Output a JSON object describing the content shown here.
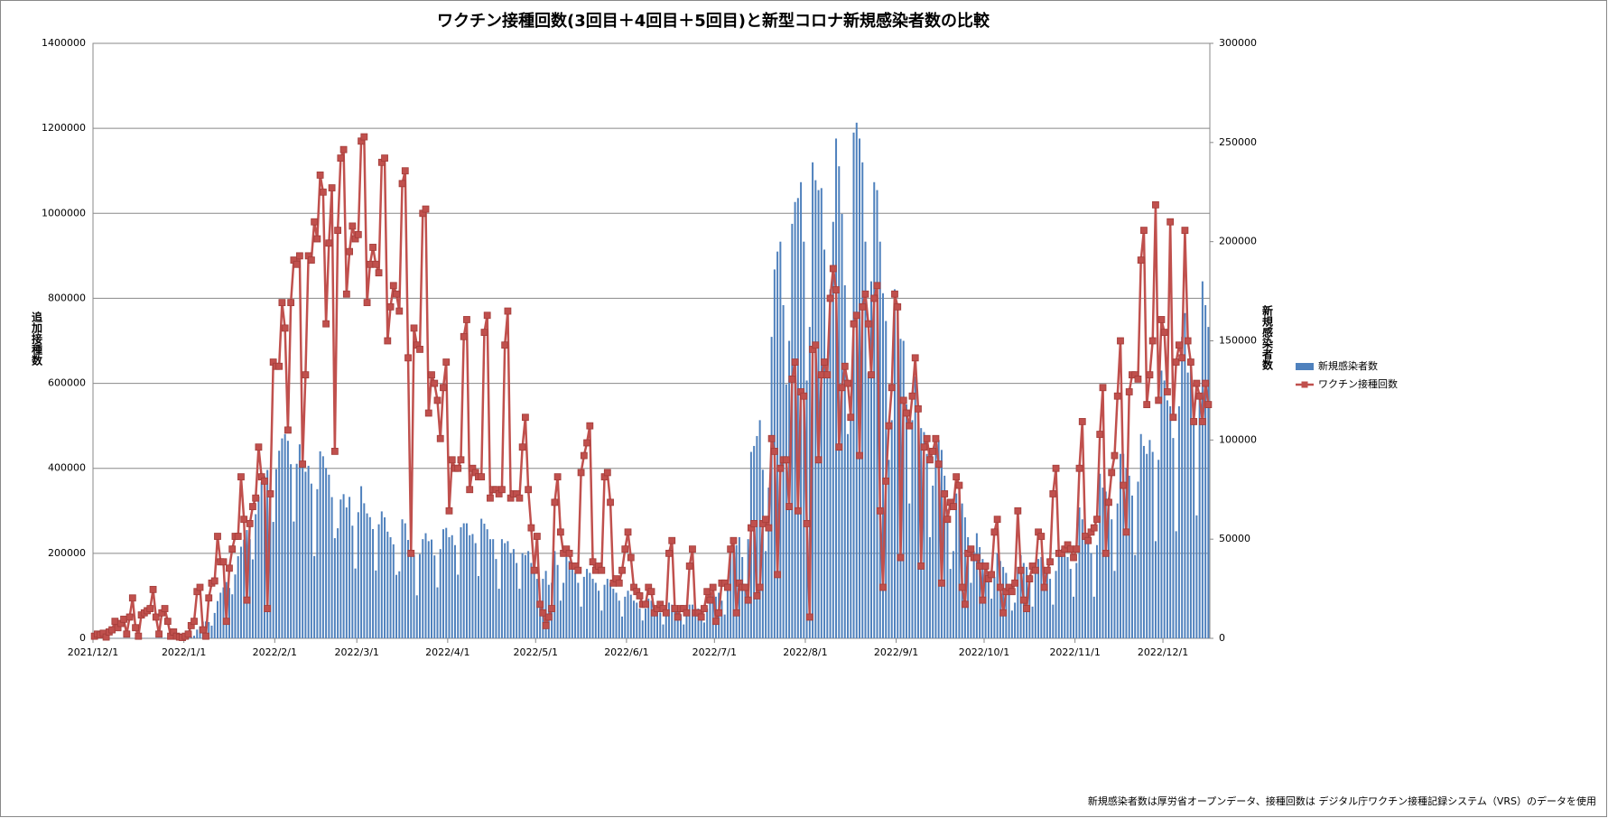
{
  "chart_data": {
    "type": "combo",
    "title": "ワクチン接種回数(3回目＋4回目＋5回目)と新型コロナ新規感染者数の比較",
    "y_label": "追加接種数",
    "y2_label": "新規感染者数",
    "footnote": "新規感染者数は厚労省オープンデータ、接種回数は デジタル庁ワクチン接種記録システム（VRS）のデータを使用",
    "ylim": [
      0,
      1400000
    ],
    "yticks": [
      0,
      200000,
      400000,
      600000,
      800000,
      1000000,
      1200000,
      1400000
    ],
    "y2lim": [
      0,
      300000
    ],
    "y2ticks": [
      0,
      50000,
      100000,
      150000,
      200000,
      250000,
      300000
    ],
    "grid": true,
    "legend": "right",
    "categories": [
      "2021/12/1",
      null,
      null,
      null,
      null,
      null,
      null,
      null,
      null,
      null,
      null,
      null,
      null,
      null,
      null,
      null,
      null,
      null,
      null,
      null,
      null,
      null,
      null,
      null,
      null,
      null,
      null,
      null,
      null,
      null,
      null,
      "2022/1/1",
      null,
      null,
      null,
      null,
      null,
      null,
      null,
      null,
      null,
      null,
      null,
      null,
      null,
      null,
      null,
      null,
      null,
      null,
      null,
      null,
      null,
      null,
      null,
      null,
      null,
      null,
      null,
      null,
      null,
      null,
      "2022/2/1",
      null,
      null,
      null,
      null,
      null,
      null,
      null,
      null,
      null,
      null,
      null,
      null,
      null,
      null,
      null,
      null,
      null,
      null,
      null,
      null,
      null,
      null,
      null,
      null,
      null,
      null,
      null,
      "2022/3/1",
      null,
      null,
      null,
      null,
      null,
      null,
      null,
      null,
      null,
      null,
      null,
      null,
      null,
      null,
      null,
      null,
      null,
      null,
      null,
      null,
      null,
      null,
      null,
      null,
      null,
      null,
      null,
      null,
      null,
      null,
      "2022/4/1",
      null,
      null,
      null,
      null,
      null,
      null,
      null,
      null,
      null,
      null,
      null,
      null,
      null,
      null,
      null,
      null,
      null,
      null,
      null,
      null,
      null,
      null,
      null,
      null,
      null,
      null,
      null,
      null,
      null,
      "2022/5/1",
      null,
      null,
      null,
      null,
      null,
      null,
      null,
      null,
      null,
      null,
      null,
      null,
      null,
      null,
      null,
      null,
      null,
      null,
      null,
      null,
      null,
      null,
      null,
      null,
      null,
      null,
      null,
      null,
      null,
      null,
      "2022/6/1",
      null,
      null,
      null,
      null,
      null,
      null,
      null,
      null,
      null,
      null,
      null,
      null,
      null,
      null,
      null,
      null,
      null,
      null,
      null,
      null,
      null,
      null,
      null,
      null,
      null,
      null,
      null,
      null,
      null,
      "2022/7/1",
      null,
      null,
      null,
      null,
      null,
      null,
      null,
      null,
      null,
      null,
      null,
      null,
      null,
      null,
      null,
      null,
      null,
      null,
      null,
      null,
      null,
      null,
      null,
      null,
      null,
      null,
      null,
      null,
      null,
      null,
      "2022/8/1",
      null,
      null,
      null,
      null,
      null,
      null,
      null,
      null,
      null,
      null,
      null,
      null,
      null,
      null,
      null,
      null,
      null,
      null,
      null,
      null,
      null,
      null,
      null,
      null,
      null,
      null,
      null,
      null,
      null,
      null,
      "2022/9/1",
      null,
      null,
      null,
      null,
      null,
      null,
      null,
      null,
      null,
      null,
      null,
      null,
      null,
      null,
      null,
      null,
      null,
      null,
      null,
      null,
      null,
      null,
      null,
      null,
      null,
      null,
      null,
      null,
      null,
      "2022/10/1",
      null,
      null,
      null,
      null,
      null,
      null,
      null,
      null,
      null,
      null,
      null,
      null,
      null,
      null,
      null,
      null,
      null,
      null,
      null,
      null,
      null,
      null,
      null,
      null,
      null,
      null,
      null,
      null,
      null,
      null,
      "2022/11/1",
      null,
      null,
      null,
      null,
      null,
      null,
      null,
      null,
      null,
      null,
      null,
      null,
      null,
      null,
      null,
      null,
      null,
      null,
      null,
      null,
      null,
      null,
      null,
      null,
      null,
      null,
      null,
      null,
      null,
      "2022/12/1",
      null,
      null,
      null,
      null,
      null,
      null,
      null,
      null,
      null,
      null,
      null,
      null,
      null,
      null,
      null
    ],
    "series": [
      {
        "name": "新規感染者数",
        "type": "bar",
        "axis": "y2",
        "color": "#4f81bd",
        "values": [
          100,
          130,
          110,
          120,
          130,
          80,
          100,
          130,
          150,
          140,
          150,
          130,
          90,
          120,
          170,
          160,
          180,
          190,
          160,
          100,
          170,
          230,
          240,
          260,
          300,
          260,
          190,
          380,
          480,
          520,
          500,
          550,
          530,
          780,
          1300,
          4400,
          6000,
          8400,
          8500,
          8200,
          6400,
          12800,
          18800,
          23000,
          25700,
          28400,
          25400,
          22200,
          32200,
          41400,
          46200,
          49800,
          54600,
          50000,
          39800,
          62600,
          71600,
          78900,
          81800,
          84900,
          78300,
          58700,
          85300,
          94600,
          100800,
          103000,
          99600,
          87800,
          58900,
          88000,
          97800,
          98100,
          84000,
          87000,
          78000,
          41500,
          75200,
          94300,
          91800,
          85900,
          82500,
          71200,
          50500,
          55500,
          70000,
          72700,
          66000,
          71300,
          56800,
          35200,
          63600,
          76700,
          68100,
          63000,
          61100,
          55100,
          34200,
          57500,
          64000,
          61000,
          53800,
          51000,
          47400,
          32000,
          33800,
          60000,
          58000,
          49600,
          48000,
          42000,
          21700,
          42500,
          50000,
          53000,
          49000,
          49800,
          41800,
          25700,
          45000,
          55000,
          55700,
          51000,
          52000,
          47000,
          32100,
          56000,
          58000,
          58000,
          52000,
          52600,
          48000,
          31400,
          60300,
          57800,
          55000,
          50000,
          50000,
          40000,
          25000,
          50000,
          48000,
          49000,
          43000,
          45000,
          38000,
          25000,
          43000,
          42000,
          44000,
          38000,
          35000,
          30000,
          18000,
          30000,
          34000,
          27000,
          28000,
          44000,
          37000,
          19000,
          28000,
          41000,
          39000,
          35000,
          33000,
          28000,
          16000,
          31000,
          35000,
          33000,
          30000,
          28000,
          24000,
          14000,
          27000,
          30000,
          28000,
          25000,
          23000,
          19000,
          11000,
          21000,
          24000,
          22000,
          19000,
          18000,
          15000,
          9000,
          15000,
          20000,
          19000,
          16000,
          16000,
          13000,
          7000,
          14000,
          18000,
          17000,
          15000,
          15000,
          12000,
          7000,
          13000,
          17000,
          17000,
          15000,
          15000,
          14000,
          8000,
          15000,
          23000,
          23000,
          21000,
          23000,
          19000,
          12000,
          25000,
          45000,
          47000,
          47000,
          51000,
          41000,
          27000,
          50000,
          94000,
          97000,
          102000,
          110000,
          85000,
          44000,
          76000,
          152000,
          186000,
          195000,
          200000,
          168000,
          128000,
          150000,
          209000,
          220000,
          222000,
          230000,
          200000,
          130000,
          157000,
          240000,
          231000,
          226000,
          227000,
          196000,
          133000,
          176000,
          210000,
          252000,
          238000,
          214000,
          178000,
          103000,
          122000,
          255000,
          260000,
          252000,
          240000,
          200000,
          134000,
          180000,
          230000,
          226000,
          200000,
          174000,
          160000,
          90000,
          110000,
          176000,
          166000,
          151000,
          150000,
          118000,
          68000,
          110000,
          132000,
          112000,
          106000,
          104000,
          93000,
          51000,
          77000,
          101000,
          100000,
          95000,
          82000,
          65000,
          35000,
          44000,
          73000,
          74000,
          68000,
          61000,
          51000,
          28000,
          44000,
          53000,
          46000,
          40000,
          37000,
          31000,
          20000,
          31000,
          43000,
          39000,
          36000,
          33000,
          27000,
          14000,
          18000,
          36000,
          42000,
          38000,
          36000,
          30000,
          16000,
          33000,
          40000,
          41000,
          36000,
          34000,
          30000,
          17000,
          34000,
          45000,
          45000,
          42000,
          41000,
          35000,
          21000,
          38000,
          66000,
          60000,
          56000,
          50000,
          43000,
          21000,
          47000,
          83000,
          76000,
          74000,
          71000,
          60000,
          34000,
          68000,
          93000,
          93000,
          86000,
          82000,
          72000,
          42000,
          79000,
          103000,
          97000,
          93000,
          100000,
          94000,
          49000,
          90000,
          135000,
          130000,
          120000,
          117000,
          101000,
          54000,
          117000,
          152000,
          164000,
          134000,
          138000,
          113000,
          62000,
          122000,
          180000,
          168000,
          157000
        ]
      },
      {
        "name": "ワクチン接種回数",
        "type": "line",
        "axis": "y",
        "color": "#c0504d",
        "values": [
          5000,
          10000,
          8000,
          12000,
          3000,
          15000,
          20000,
          40000,
          25000,
          35000,
          45000,
          10000,
          50000,
          95000,
          25000,
          5000,
          55000,
          60000,
          65000,
          70000,
          115000,
          50000,
          10000,
          60000,
          70000,
          40000,
          5000,
          15000,
          5000,
          3000,
          2000,
          5000,
          10000,
          30000,
          40000,
          110000,
          120000,
          20000,
          5000,
          95000,
          130000,
          135000,
          240000,
          180000,
          180000,
          40000,
          165000,
          210000,
          240000,
          240000,
          380000,
          280000,
          90000,
          270000,
          310000,
          330000,
          450000,
          380000,
          370000,
          70000,
          340000,
          650000,
          640000,
          640000,
          790000,
          730000,
          490000,
          790000,
          890000,
          880000,
          900000,
          410000,
          620000,
          900000,
          890000,
          980000,
          940000,
          1090000,
          1050000,
          740000,
          930000,
          1060000,
          440000,
          960000,
          1130000,
          1150000,
          810000,
          910000,
          970000,
          940000,
          950000,
          1170000,
          1180000,
          790000,
          880000,
          920000,
          880000,
          860000,
          1120000,
          1130000,
          700000,
          780000,
          830000,
          810000,
          770000,
          1070000,
          1100000,
          660000,
          200000,
          730000,
          690000,
          680000,
          1000000,
          1010000,
          530000,
          620000,
          600000,
          560000,
          470000,
          590000,
          650000,
          300000,
          420000,
          400000,
          400000,
          420000,
          710000,
          750000,
          350000,
          400000,
          390000,
          380000,
          380000,
          720000,
          760000,
          330000,
          350000,
          350000,
          340000,
          350000,
          690000,
          770000,
          330000,
          340000,
          340000,
          330000,
          450000,
          520000,
          350000,
          260000,
          160000,
          240000,
          80000,
          60000,
          30000,
          50000,
          70000,
          320000,
          380000,
          250000,
          200000,
          210000,
          200000,
          170000,
          170000,
          160000,
          390000,
          430000,
          460000,
          500000,
          180000,
          160000,
          170000,
          160000,
          380000,
          390000,
          320000,
          130000,
          140000,
          130000,
          160000,
          210000,
          250000,
          190000,
          120000,
          110000,
          100000,
          80000,
          80000,
          120000,
          110000,
          60000,
          70000,
          80000,
          70000,
          60000,
          200000,
          230000,
          70000,
          50000,
          70000,
          70000,
          60000,
          170000,
          210000,
          60000,
          60000,
          50000,
          70000,
          110000,
          90000,
          120000,
          40000,
          60000,
          130000,
          130000,
          120000,
          210000,
          230000,
          60000,
          130000,
          120000,
          120000,
          90000,
          260000,
          270000,
          100000,
          120000,
          270000,
          280000,
          260000,
          470000,
          440000,
          150000,
          400000,
          420000,
          420000,
          310000,
          610000,
          650000,
          300000,
          580000,
          570000,
          270000,
          50000,
          680000,
          690000,
          420000,
          620000,
          650000,
          620000,
          800000,
          870000,
          820000,
          450000,
          590000,
          640000,
          600000,
          520000,
          740000,
          760000,
          430000,
          780000,
          810000,
          740000,
          620000,
          800000,
          830000,
          300000,
          120000,
          370000,
          500000,
          590000,
          810000,
          780000,
          190000,
          560000,
          530000,
          500000,
          570000,
          660000,
          540000,
          170000,
          450000,
          470000,
          420000,
          440000,
          470000,
          410000,
          130000,
          340000,
          280000,
          320000,
          310000,
          380000,
          360000,
          120000,
          80000,
          200000,
          210000,
          190000,
          190000,
          170000,
          90000,
          170000,
          140000,
          150000,
          250000,
          280000,
          120000,
          60000,
          110000,
          120000,
          110000,
          130000,
          300000,
          160000,
          90000,
          70000,
          140000,
          170000,
          160000,
          250000,
          240000,
          120000,
          160000,
          180000,
          340000,
          400000,
          200000,
          200000,
          210000,
          220000,
          210000,
          190000,
          210000,
          400000,
          510000,
          240000,
          230000,
          250000,
          260000,
          280000,
          480000,
          590000,
          200000,
          320000,
          390000,
          430000,
          570000,
          700000,
          360000,
          250000,
          580000,
          620000,
          620000,
          610000,
          890000,
          960000,
          550000,
          620000,
          700000,
          1020000,
          560000,
          750000,
          720000,
          580000,
          980000,
          520000,
          650000,
          690000,
          660000,
          960000,
          700000,
          650000,
          510000,
          600000,
          570000,
          510000,
          600000,
          550000
        ]
      }
    ]
  }
}
